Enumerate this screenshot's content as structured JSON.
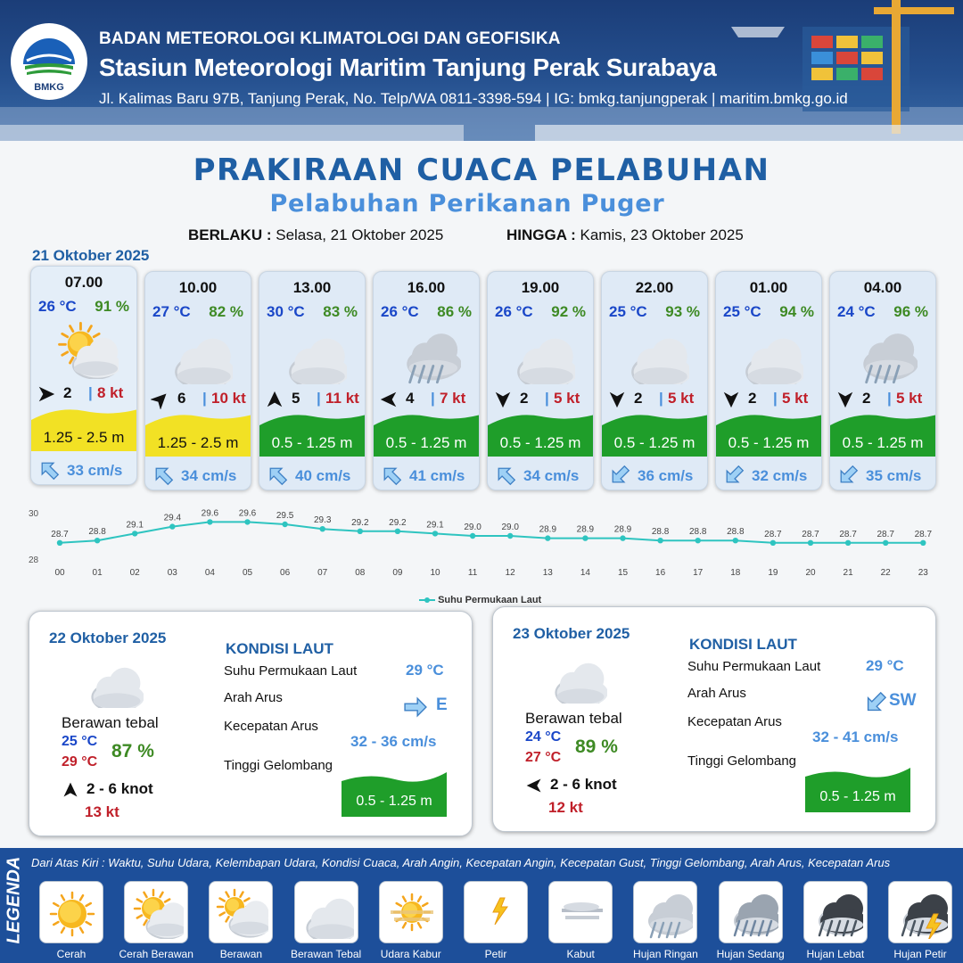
{
  "header": {
    "org": "BADAN METEOROLOGI KLIMATOLOGI DAN GEOFISIKA",
    "station": "Stasiun Meteorologi Maritim Tanjung Perak Surabaya",
    "address": "Jl. Kalimas Baru 97B, Tanjung Perak, No. Telp/WA 0811-3398-594 | IG: bmkg.tanjungperak | maritim.bmkg.go.id",
    "logo_text": "BMKG"
  },
  "title": "PRAKIRAAN CUACA PELABUHAN",
  "subtitle": "Pelabuhan Perikanan Puger",
  "validity": {
    "from_label": "BERLAKU :",
    "from_value": "Selasa, 21 Oktober 2025",
    "to_label": "HINGGA :",
    "to_value": "Kamis, 23 Oktober 2025"
  },
  "day1_date": "21 Oktober 2025",
  "forecast": [
    {
      "time": "07.00",
      "temp": "26 °C",
      "hum": "91 %",
      "icon": "cerah-berawan-icon",
      "wind_dir": "E",
      "wind": "2",
      "gust": "8 kt",
      "wave": "1.25 - 2.5 m",
      "wave_class": "moderate",
      "cur_dir": "NW",
      "current": "33 cm/s"
    },
    {
      "time": "10.00",
      "temp": "27 °C",
      "hum": "82 %",
      "icon": "berawan-tebal-icon",
      "wind_dir": "NE",
      "wind": "6",
      "gust": "10 kt",
      "wave": "1.25 - 2.5 m",
      "wave_class": "moderate",
      "cur_dir": "NW",
      "current": "34 cm/s"
    },
    {
      "time": "13.00",
      "temp": "30 °C",
      "hum": "83 %",
      "icon": "berawan-tebal-icon",
      "wind_dir": "N",
      "wind": "5",
      "gust": "11 kt",
      "wave": "0.5 - 1.25 m",
      "wave_class": "low",
      "cur_dir": "NW",
      "current": "40 cm/s"
    },
    {
      "time": "16.00",
      "temp": "26 °C",
      "hum": "86 %",
      "icon": "hujan-ringan-icon",
      "wind_dir": "W",
      "wind": "4",
      "gust": "7 kt",
      "wave": "0.5 - 1.25 m",
      "wave_class": "low",
      "cur_dir": "NW",
      "current": "41 cm/s"
    },
    {
      "time": "19.00",
      "temp": "26 °C",
      "hum": "92 %",
      "icon": "berawan-tebal-icon",
      "wind_dir": "S",
      "wind": "2",
      "gust": "5 kt",
      "wave": "0.5 - 1.25 m",
      "wave_class": "low",
      "cur_dir": "NW",
      "current": "34 cm/s"
    },
    {
      "time": "22.00",
      "temp": "25 °C",
      "hum": "93 %",
      "icon": "berawan-tebal-icon",
      "wind_dir": "S",
      "wind": "2",
      "gust": "5 kt",
      "wave": "0.5 - 1.25 m",
      "wave_class": "low",
      "cur_dir": "SW",
      "current": "36 cm/s"
    },
    {
      "time": "01.00",
      "temp": "25 °C",
      "hum": "94 %",
      "icon": "berawan-tebal-icon",
      "wind_dir": "S",
      "wind": "2",
      "gust": "5 kt",
      "wave": "0.5 - 1.25 m",
      "wave_class": "low",
      "cur_dir": "SW",
      "current": "32 cm/s"
    },
    {
      "time": "04.00",
      "temp": "24 °C",
      "hum": "96 %",
      "icon": "hujan-ringan-icon",
      "wind_dir": "S",
      "wind": "2",
      "gust": "5 kt",
      "wave": "0.5 - 1.25 m",
      "wave_class": "low",
      "cur_dir": "SW",
      "current": "35 cm/s"
    }
  ],
  "chart_data": {
    "type": "line",
    "x": [
      "00",
      "01",
      "02",
      "03",
      "04",
      "05",
      "06",
      "07",
      "08",
      "09",
      "10",
      "11",
      "12",
      "13",
      "14",
      "15",
      "16",
      "17",
      "18",
      "19",
      "20",
      "21",
      "22",
      "23"
    ],
    "series": [
      {
        "name": "Suhu Permukaan Laut",
        "values": [
          28.7,
          28.8,
          29.1,
          29.4,
          29.6,
          29.6,
          29.5,
          29.3,
          29.2,
          29.2,
          29.1,
          29.0,
          29.0,
          28.9,
          28.9,
          28.9,
          28.8,
          28.8,
          28.8,
          28.7,
          28.7,
          28.7,
          28.7,
          28.7
        ]
      }
    ],
    "yticks": [
      "30",
      "28"
    ],
    "ylim": [
      28,
      30
    ],
    "color": "#2ec4c0",
    "legend": "bottom-center"
  },
  "days": [
    {
      "date": "22 Oktober 2025",
      "condition": "Berawan tebal",
      "tmin": "25 °C",
      "tmax": "29 °C",
      "hum": "87 %",
      "wind_dir": "N",
      "wind": "2  - 6 knot",
      "gust": "13 kt",
      "kondisi_title": "KONDISI LAUT",
      "sst_label": "Suhu Permukaan Laut",
      "sst": "29 °C",
      "arah_label": "Arah Arus",
      "arah": "E",
      "kec_label": "Kecepatan Arus",
      "kec": "32  - 36 cm/s",
      "tinggi_label": "Tinggi Gelombang",
      "tinggi": "0.5 - 1.25 m"
    },
    {
      "date": "23 Oktober 2025",
      "condition": "Berawan tebal",
      "tmin": "24 °C",
      "tmax": "27 °C",
      "hum": "89 %",
      "wind_dir": "W",
      "wind": "2  - 6 knot",
      "gust": "12 kt",
      "kondisi_title": "KONDISI LAUT",
      "sst_label": "Suhu Permukaan Laut",
      "sst": "29 °C",
      "arah_label": "Arah Arus",
      "arah": "SW",
      "kec_label": "Kecepatan Arus",
      "kec": "32 - 41 cm/s",
      "tinggi_label": "Tinggi Gelombang",
      "tinggi": "0.5 - 1.25 m"
    }
  ],
  "legend": {
    "title": "LEGENDA",
    "description": "Dari Atas Kiri : Waktu, Suhu Udara, Kelembapan Udara, Kondisi Cuaca, Arah Angin, Kecepatan Angin, Kecepatan Gust, Tinggi Gelombang, Arah Arus, Kecepatan Arus",
    "items": [
      "Cerah",
      "Cerah Berawan",
      "Berawan",
      "Berawan Tebal",
      "Udara Kabur",
      "Petir",
      "Kabut",
      "Hujan Ringan",
      "Hujan Sedang",
      "Hujan Lebat",
      "Hujan Petir"
    ]
  },
  "colors": {
    "wave_low": "#1f9e2a",
    "wave_moderate": "#f2e124",
    "title_blue": "#1f5fa4",
    "legend_bar": "#1d4f9a"
  }
}
